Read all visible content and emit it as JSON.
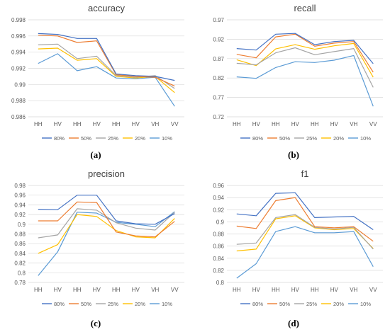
{
  "colors": {
    "80%": "#4472C4",
    "50%": "#ED7D31",
    "25%": "#A5A5A5",
    "20%": "#FFC000",
    "10%": "#5B9BD5"
  },
  "chart_data": [
    {
      "type": "line",
      "title": "accuracy",
      "caption": "(a)",
      "categories": [
        "HH",
        "HV",
        "HH",
        "HV",
        "HH",
        "HV",
        "VH",
        "VV"
      ],
      "ylim": [
        0.986,
        0.998
      ],
      "yticks": [
        "0.986",
        "0.988",
        "0.99",
        "0.992",
        "0.994",
        "0.996",
        "0.998"
      ],
      "legend": "bottom",
      "series": [
        {
          "name": "80%",
          "values": [
            0.9963,
            0.9962,
            0.9957,
            0.9957,
            0.9913,
            0.9911,
            0.991,
            0.9905
          ]
        },
        {
          "name": "50%",
          "values": [
            0.9961,
            0.996,
            0.9952,
            0.9954,
            0.9912,
            0.991,
            0.9909,
            0.9898
          ]
        },
        {
          "name": "25%",
          "values": [
            0.9949,
            0.995,
            0.9932,
            0.9935,
            0.9911,
            0.9909,
            0.9911,
            0.9895
          ]
        },
        {
          "name": "20%",
          "values": [
            0.9944,
            0.9945,
            0.993,
            0.9932,
            0.991,
            0.9908,
            0.991,
            0.989
          ]
        },
        {
          "name": "10%",
          "values": [
            0.9926,
            0.9938,
            0.9917,
            0.9922,
            0.9908,
            0.9907,
            0.9909,
            0.9873
          ]
        }
      ]
    },
    {
      "type": "line",
      "title": "recall",
      "caption": "(b)",
      "categories": [
        "HH",
        "HV",
        "HH",
        "HV",
        "HH",
        "HV",
        "VH",
        "VV"
      ],
      "ylim": [
        0.72,
        0.97
      ],
      "yticks": [
        "0.72",
        "0.77",
        "0.82",
        "0.87",
        "0.92",
        "0.97"
      ],
      "legend": "bottom",
      "series": [
        {
          "name": "80%",
          "values": [
            0.896,
            0.892,
            0.933,
            0.935,
            0.906,
            0.914,
            0.917,
            0.857
          ]
        },
        {
          "name": "50%",
          "values": [
            0.881,
            0.872,
            0.926,
            0.933,
            0.902,
            0.91,
            0.914,
            0.835
          ]
        },
        {
          "name": "25%",
          "values": [
            0.858,
            0.854,
            0.885,
            0.898,
            0.88,
            0.888,
            0.896,
            0.796
          ]
        },
        {
          "name": "20%",
          "values": [
            0.867,
            0.852,
            0.895,
            0.906,
            0.894,
            0.903,
            0.909,
            0.822
          ]
        },
        {
          "name": "10%",
          "values": [
            0.823,
            0.819,
            0.847,
            0.862,
            0.86,
            0.866,
            0.878,
            0.747
          ]
        }
      ]
    },
    {
      "type": "line",
      "title": "precision",
      "caption": "(c)",
      "categories": [
        "HH",
        "HV",
        "HH",
        "HV",
        "HH",
        "HV",
        "VH",
        "VV"
      ],
      "ylim": [
        0.78,
        0.98
      ],
      "yticks": [
        "0.78",
        "0.8",
        "0.82",
        "0.84",
        "0.86",
        "0.88",
        "0.9",
        "0.92",
        "0.94",
        "0.96",
        "0.98"
      ],
      "legend": "bottom",
      "series": [
        {
          "name": "80%",
          "values": [
            0.931,
            0.93,
            0.96,
            0.96,
            0.907,
            0.901,
            0.9,
            0.922
          ]
        },
        {
          "name": "50%",
          "values": [
            0.907,
            0.907,
            0.946,
            0.945,
            0.884,
            0.876,
            0.874,
            0.906
          ]
        },
        {
          "name": "25%",
          "values": [
            0.872,
            0.878,
            0.932,
            0.929,
            0.903,
            0.892,
            0.888,
            0.925
          ]
        },
        {
          "name": "20%",
          "values": [
            0.84,
            0.858,
            0.92,
            0.916,
            0.887,
            0.874,
            0.872,
            0.912
          ]
        },
        {
          "name": "10%",
          "values": [
            0.794,
            0.843,
            0.925,
            0.923,
            0.904,
            0.9,
            0.895,
            0.926
          ]
        }
      ]
    },
    {
      "type": "line",
      "title": "f1",
      "caption": "(d)",
      "categories": [
        "HH",
        "HV",
        "HH",
        "HV",
        "HH",
        "HV",
        "VH",
        "VV"
      ],
      "ylim": [
        0.8,
        0.96
      ],
      "yticks": [
        "0.8",
        "0.82",
        "0.84",
        "0.86",
        "0.88",
        "0.9",
        "0.92",
        "0.94",
        "0.96"
      ],
      "legend": "bottom",
      "series": [
        {
          "name": "80%",
          "values": [
            0.913,
            0.91,
            0.947,
            0.948,
            0.907,
            0.908,
            0.909,
            0.887
          ]
        },
        {
          "name": "50%",
          "values": [
            0.893,
            0.889,
            0.935,
            0.94,
            0.892,
            0.89,
            0.892,
            0.868
          ]
        },
        {
          "name": "25%",
          "values": [
            0.863,
            0.865,
            0.907,
            0.912,
            0.891,
            0.888,
            0.891,
            0.855
          ]
        },
        {
          "name": "20%",
          "values": [
            0.852,
            0.855,
            0.905,
            0.91,
            0.89,
            0.887,
            0.889,
            0.856
          ]
        },
        {
          "name": "10%",
          "values": [
            0.807,
            0.831,
            0.884,
            0.892,
            0.882,
            0.882,
            0.884,
            0.826
          ]
        }
      ]
    }
  ]
}
